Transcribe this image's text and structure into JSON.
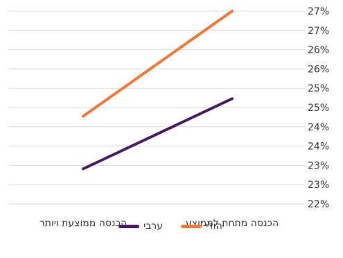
{
  "chart_data": {
    "type": "line",
    "categories": [
      "הכנסה מתחת לממוצע",
      "הכנסה ממוצעת ויותר"
    ],
    "y_ticks": [
      "22%",
      "23%",
      "23%",
      "24%",
      "24%",
      "25%",
      "25%",
      "26%",
      "26%",
      "27%",
      "27%"
    ],
    "ylim": [
      22,
      27.5
    ],
    "grid": true,
    "legend_position": "bottom",
    "series": [
      {
        "name": "יהודי",
        "color": "#f07a3c",
        "values": [
          27.5,
          24.5
        ]
      },
      {
        "name": "ערבי",
        "color": "#4a1f62",
        "values": [
          25.0,
          23.0
        ]
      }
    ]
  }
}
